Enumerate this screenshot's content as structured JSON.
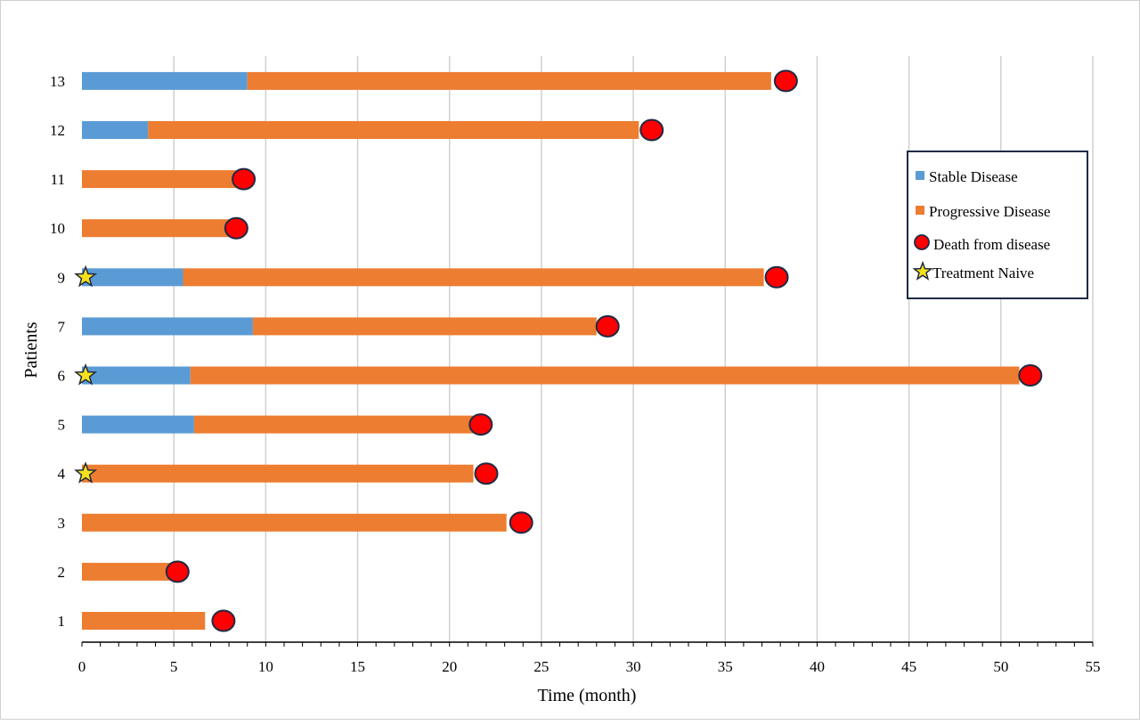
{
  "chart_data": {
    "type": "bar",
    "orientation": "horizontal",
    "stacked": true,
    "xlabel": "Time (month)",
    "ylabel": "Patients",
    "xlim": [
      0,
      55
    ],
    "xticks": [
      0,
      5,
      10,
      15,
      20,
      25,
      30,
      35,
      40,
      45,
      50,
      55
    ],
    "grid": "vertical",
    "legend_position": "right",
    "categories": [
      "1",
      "2",
      "3",
      "4",
      "5",
      "6",
      "7",
      "9",
      "10",
      "11",
      "12",
      "13"
    ],
    "series": [
      {
        "name": "Stable Disease",
        "color": "#5b9bd5",
        "values": [
          0,
          0,
          0,
          0,
          6.1,
          5.9,
          9.3,
          5.5,
          0,
          0,
          3.6,
          9.0
        ]
      },
      {
        "name": "Progressive Disease",
        "color": "#ed7d31",
        "values": [
          6.7,
          4.8,
          23.1,
          21.3,
          15.2,
          45.1,
          18.7,
          31.6,
          8.1,
          8.5,
          26.7,
          28.5
        ]
      }
    ],
    "markers": [
      {
        "name": "Death from disease",
        "color": "#ff0000",
        "shape": "circle",
        "points": [
          {
            "patient": "1",
            "x": 7.7
          },
          {
            "patient": "2",
            "x": 5.2
          },
          {
            "patient": "3",
            "x": 23.9
          },
          {
            "patient": "4",
            "x": 22.0
          },
          {
            "patient": "5",
            "x": 21.7
          },
          {
            "patient": "6",
            "x": 51.6
          },
          {
            "patient": "7",
            "x": 28.6
          },
          {
            "patient": "9",
            "x": 37.8
          },
          {
            "patient": "10",
            "x": 8.4
          },
          {
            "patient": "11",
            "x": 8.8
          },
          {
            "patient": "12",
            "x": 31.0
          },
          {
            "patient": "13",
            "x": 38.3
          }
        ]
      },
      {
        "name": "Treatment Naive",
        "color": "#f5e11b",
        "shape": "star",
        "points": [
          {
            "patient": "4",
            "x": 0.1
          },
          {
            "patient": "6",
            "x": 0.1
          },
          {
            "patient": "9",
            "x": 0.1
          }
        ]
      }
    ]
  }
}
